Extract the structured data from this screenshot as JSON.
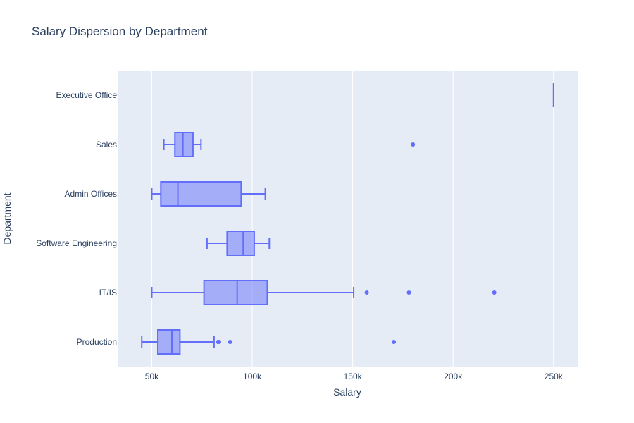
{
  "chart_data": {
    "type": "box",
    "orientation": "horizontal",
    "title": "Salary Dispersion by Department",
    "xlabel": "Salary",
    "ylabel": "Department",
    "xlim": [
      33000,
      262000
    ],
    "xticks": [
      {
        "value": 50000,
        "label": "50k"
      },
      {
        "value": 100000,
        "label": "100k"
      },
      {
        "value": 150000,
        "label": "150k"
      },
      {
        "value": 200000,
        "label": "200k"
      },
      {
        "value": 250000,
        "label": "250k"
      }
    ],
    "grid": true,
    "colors": {
      "plot_bg": "#e5ecf6",
      "grid": "#ffffff",
      "box_stroke": "#636efa",
      "box_fill": "#636efa",
      "text": "#2a3f5f"
    },
    "categories": [
      "Production",
      "IT/IS",
      "Software Engineering",
      "Admin Offices",
      "Sales",
      "Executive Office"
    ],
    "boxes": [
      {
        "category": "Production",
        "min": 45000,
        "q1": 53000,
        "median": 60000,
        "q3": 64000,
        "max": 81000,
        "outliers": [
          83000,
          83500,
          89000,
          170500
        ]
      },
      {
        "category": "IT/IS",
        "min": 50000,
        "q1": 76000,
        "median": 92500,
        "q3": 107500,
        "max": 150500,
        "outliers": [
          157000,
          178000,
          220500
        ]
      },
      {
        "category": "Software Engineering",
        "min": 77500,
        "q1": 87500,
        "median": 95500,
        "q3": 101000,
        "max": 108500,
        "outliers": []
      },
      {
        "category": "Admin Offices",
        "min": 50000,
        "q1": 54500,
        "median": 63000,
        "q3": 94500,
        "max": 106500,
        "outliers": []
      },
      {
        "category": "Sales",
        "min": 56000,
        "q1": 61500,
        "median": 65500,
        "q3": 70500,
        "max": 74500,
        "outliers": [
          180000
        ]
      },
      {
        "category": "Executive Office",
        "min": 250000,
        "q1": 250000,
        "median": 250000,
        "q3": 250000,
        "max": 250000,
        "outliers": []
      }
    ]
  }
}
